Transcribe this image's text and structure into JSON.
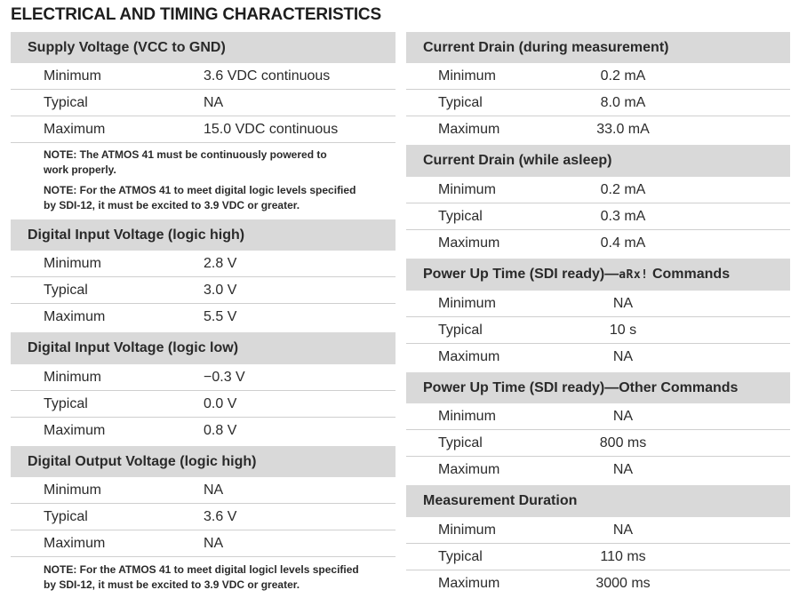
{
  "title": "ELECTRICAL AND TIMING CHARACTERISTICS",
  "left": {
    "supply": {
      "header": "Supply Voltage (VCC to GND)",
      "rows": [
        {
          "label": "Minimum",
          "value": "3.6 VDC continuous"
        },
        {
          "label": "Typical",
          "value": "NA"
        },
        {
          "label": "Maximum",
          "value": "15.0 VDC continuous"
        }
      ],
      "notes": [
        [
          "NOTE:  The ATMOS 41 must be continuously powered to",
          "work properly."
        ],
        [
          "NOTE:  For the ATMOS 41 to meet digital logic levels specified",
          "by SDI-12, it must be excited to 3.9 VDC or greater."
        ]
      ]
    },
    "din_high": {
      "header": "Digital Input Voltage (logic high)",
      "rows": [
        {
          "label": "Minimum",
          "value": "2.8 V"
        },
        {
          "label": "Typical",
          "value": "3.0 V"
        },
        {
          "label": "Maximum",
          "value": "5.5 V"
        }
      ]
    },
    "din_low": {
      "header": "Digital Input Voltage (logic low)",
      "rows": [
        {
          "label": "Minimum",
          "value": "−0.3 V"
        },
        {
          "label": "Typical",
          "value": "0.0 V"
        },
        {
          "label": "Maximum",
          "value": "0.8 V"
        }
      ]
    },
    "dout_high": {
      "header": "Digital Output Voltage (logic high)",
      "rows": [
        {
          "label": "Minimum",
          "value": "NA"
        },
        {
          "label": "Typical",
          "value": "3.6 V"
        },
        {
          "label": "Maximum",
          "value": "NA"
        }
      ],
      "notes": [
        [
          "NOTE:  For the ATMOS 41 to meet digital logicl levels specified",
          "by SDI-12, it must be excited to 3.9 VDC or greater."
        ]
      ]
    }
  },
  "right": {
    "drain_meas": {
      "header": "Current Drain (during measurement)",
      "rows": [
        {
          "label": "Minimum",
          "value": "0.2 mA"
        },
        {
          "label": "Typical",
          "value": "8.0 mA"
        },
        {
          "label": "Maximum",
          "value": "33.0 mA"
        }
      ]
    },
    "drain_sleep": {
      "header": "Current Drain (while asleep)",
      "rows": [
        {
          "label": "Minimum",
          "value": "0.2 mA"
        },
        {
          "label": "Typical",
          "value": "0.3 mA"
        },
        {
          "label": "Maximum",
          "value": "0.4 mA"
        }
      ]
    },
    "power_arx": {
      "header_pre": "Power Up Time (SDI ready)—",
      "header_code": "aRx!",
      "header_post": " Commands",
      "rows": [
        {
          "label": "Minimum",
          "value": "NA"
        },
        {
          "label": "Typical",
          "value": "10 s"
        },
        {
          "label": "Maximum",
          "value": "NA"
        }
      ]
    },
    "power_other": {
      "header": "Power Up Time (SDI ready)—Other Commands",
      "rows": [
        {
          "label": "Minimum",
          "value": "NA"
        },
        {
          "label": "Typical",
          "value": "800 ms"
        },
        {
          "label": "Maximum",
          "value": "NA"
        }
      ]
    },
    "meas_dur": {
      "header": "Measurement Duration",
      "rows": [
        {
          "label": "Minimum",
          "value": "NA"
        },
        {
          "label": "Typical",
          "value": "110 ms"
        },
        {
          "label": "Maximum",
          "value": "3000 ms"
        }
      ]
    }
  }
}
